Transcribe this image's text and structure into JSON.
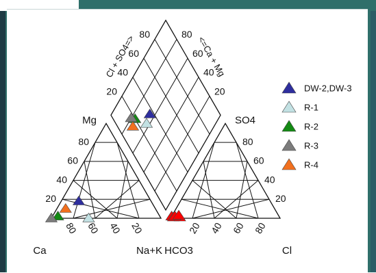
{
  "chart_data": {
    "type": "scatter",
    "subtype": "piper-diagram",
    "cation_triangle": {
      "vertex_labels": {
        "left": "Ca",
        "right": "Na+K",
        "top": "Mg"
      },
      "left_ticks": [
        "20",
        "40",
        "60",
        "80"
      ],
      "bottom_ticks": [
        "80",
        "60",
        "40",
        "20"
      ]
    },
    "anion_triangle": {
      "vertex_labels": {
        "left": "HCO3",
        "right": "Cl",
        "top": "SO4"
      },
      "right_ticks": [
        "20",
        "40",
        "60",
        "80"
      ],
      "bottom_ticks": [
        "20",
        "40",
        "60",
        "80"
      ]
    },
    "diamond": {
      "left_axis_label": "Cl + SO4=>",
      "right_axis_label": "<=Ca + Mg",
      "left_ticks": [
        "20",
        "40",
        "60",
        "80"
      ],
      "right_ticks": [
        "80",
        "60",
        "40",
        "20"
      ]
    },
    "series": [
      {
        "name": "DW-2,DW-3",
        "color": "#2e2e9e",
        "cations": [
          {
            "mg": 18,
            "na_k": 16
          }
        ],
        "anions": [
          {
            "cl": 0,
            "so4": 2
          }
        ],
        "diamond": [
          {
            "cl_so4": 36,
            "ca_mg": 65
          }
        ]
      },
      {
        "name": "R-1",
        "color": "#c2e1e3",
        "cations": [
          {
            "mg": 0,
            "na_k": 34
          }
        ],
        "anions": [
          {
            "cl": 2,
            "so4": 1
          }
        ],
        "diamond": [
          {
            "cl_so4": 28,
            "ca_mg": 63
          }
        ]
      },
      {
        "name": "R-2",
        "color": "#138a13",
        "cations": [
          {
            "mg": 2,
            "na_k": 5
          }
        ],
        "anions": [
          {
            "cl": 8,
            "so4": 1
          }
        ],
        "diamond": [
          {
            "cl_so4": 20,
            "ca_mg": 76
          }
        ]
      },
      {
        "name": "R-3",
        "color": "#7c7c7c",
        "cations": [
          {
            "mg": 0,
            "na_k": 0
          }
        ],
        "anions": [
          {
            "cl": 3,
            "so4": 2
          }
        ],
        "diamond": [
          {
            "cl_so4": 17,
            "ca_mg": 80
          }
        ]
      },
      {
        "name": "R-4",
        "color": "#f2701e",
        "cations": [
          {
            "mg": 10,
            "na_k": 8
          }
        ],
        "anions": [
          {
            "cl": 6,
            "so4": 3
          }
        ],
        "diamond": [
          {
            "cl_so4": 14,
            "ca_mg": 74
          }
        ]
      }
    ],
    "highlight_color": "#ff0000"
  }
}
